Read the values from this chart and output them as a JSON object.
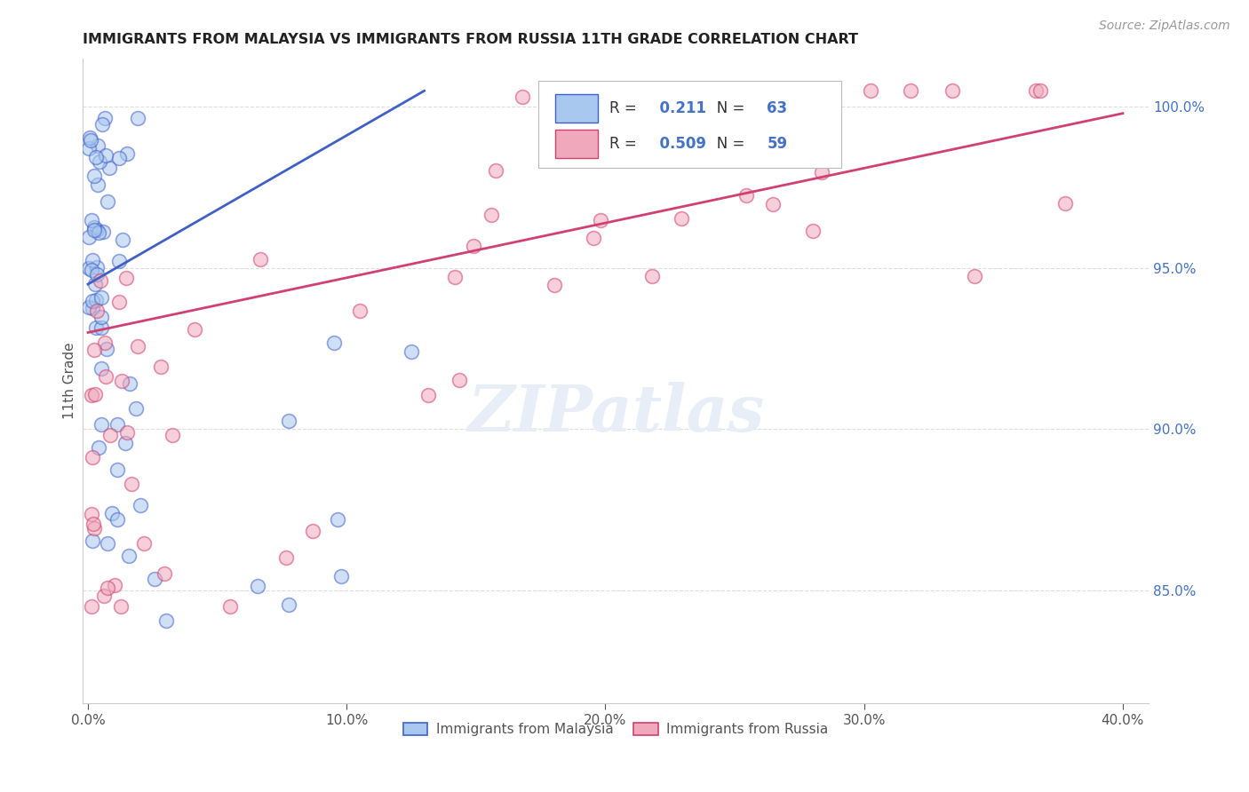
{
  "title": "IMMIGRANTS FROM MALAYSIA VS IMMIGRANTS FROM RUSSIA 11TH GRADE CORRELATION CHART",
  "source": "Source: ZipAtlas.com",
  "xlabel_ticks": [
    "0.0%",
    "10.0%",
    "20.0%",
    "30.0%",
    "40.0%"
  ],
  "xlabel_tick_vals": [
    0.0,
    0.1,
    0.2,
    0.3,
    0.4
  ],
  "ylabel": "11th Grade",
  "right_ytick_labels": [
    "100.0%",
    "95.0%",
    "90.0%",
    "85.0%"
  ],
  "right_ytick_vals": [
    1.0,
    0.95,
    0.9,
    0.85
  ],
  "xlim": [
    -0.002,
    0.41
  ],
  "ylim": [
    0.815,
    1.015
  ],
  "malaysia_R": 0.211,
  "malaysia_N": 63,
  "russia_R": 0.509,
  "russia_N": 59,
  "malaysia_color": "#A8C8F0",
  "russia_color": "#F0A8BC",
  "malaysia_line_color": "#4060C8",
  "russia_line_color": "#D04070",
  "legend_malaysia_label": "Immigrants from Malaysia",
  "legend_russia_label": "Immigrants from Russia",
  "background_color": "#FFFFFF",
  "grid_color": "#DDDDDD",
  "watermark_text": "ZIPatlas",
  "watermark_color": "#E8EEF8"
}
